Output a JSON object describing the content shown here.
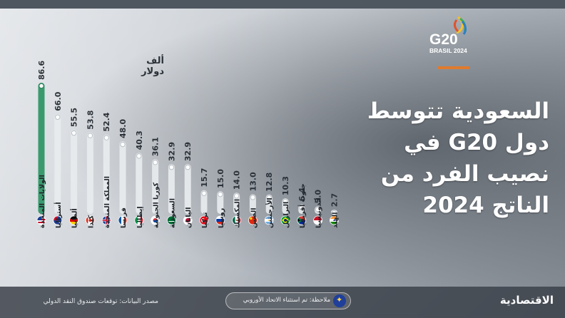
{
  "title": "السعودية تتوسط\nدول G20 في\nنصيب الفرد من\nالناتج 2024",
  "logo": {
    "main": "G20",
    "sub": "BRASIL 2024"
  },
  "unit_label": "ألف دولار",
  "source": "مصدر البيانات: توقعات صندوق النقد الدولي",
  "note": "ملاحظة: تم استثناء الاتحاد الأوروبي",
  "brand": "الاقتصادية",
  "colors": {
    "highlight": "#3a9a6e",
    "bar": "#e8ebee",
    "accent": "#e07b2e"
  },
  "chart_data": {
    "type": "bar",
    "categories": [
      "الولايات المتحدة",
      "أستراليا",
      "ألمانيا",
      "كندا",
      "المملكة المتحدة",
      "فرنسا",
      "إيطاليا",
      "كوريا الجنوبية",
      "السعودية",
      "اليابان",
      "تركيا",
      "روسيا",
      "المكسيك",
      "الصين",
      "الأرجنتين",
      "البرازيل",
      "جنوب أفريقيا",
      "أندونيسيا",
      "الهند"
    ],
    "values": [
      86.6,
      66.0,
      55.5,
      53.8,
      52.4,
      48.0,
      40.3,
      36.1,
      32.9,
      32.9,
      15.7,
      15.0,
      14.0,
      13.0,
      12.8,
      10.3,
      6.4,
      5.0,
      2.7
    ],
    "value_labels": [
      "86.6",
      "66.0",
      "55.5",
      "53.8",
      "52.4",
      "48.0",
      "40.3",
      "36.1",
      "32.9",
      "32.9",
      "15.7",
      "15.0",
      "14.0",
      "13.0",
      "12.8",
      "10.3",
      "6.4",
      "5.0",
      "2.7"
    ],
    "flags": [
      "us-flag-icon",
      "au-flag-icon",
      "de-flag-icon",
      "ca-flag-icon",
      "gb-flag-icon",
      "fr-flag-icon",
      "it-flag-icon",
      "kr-flag-icon",
      "sa-flag-icon",
      "jp-flag-icon",
      "tr-flag-icon",
      "ru-flag-icon",
      "mx-flag-icon",
      "cn-flag-icon",
      "ar-flag-icon",
      "br-flag-icon",
      "za-flag-icon",
      "id-flag-icon",
      "in-flag-icon"
    ],
    "highlight_index": 0,
    "ylim": [
      0,
      86.6
    ]
  }
}
